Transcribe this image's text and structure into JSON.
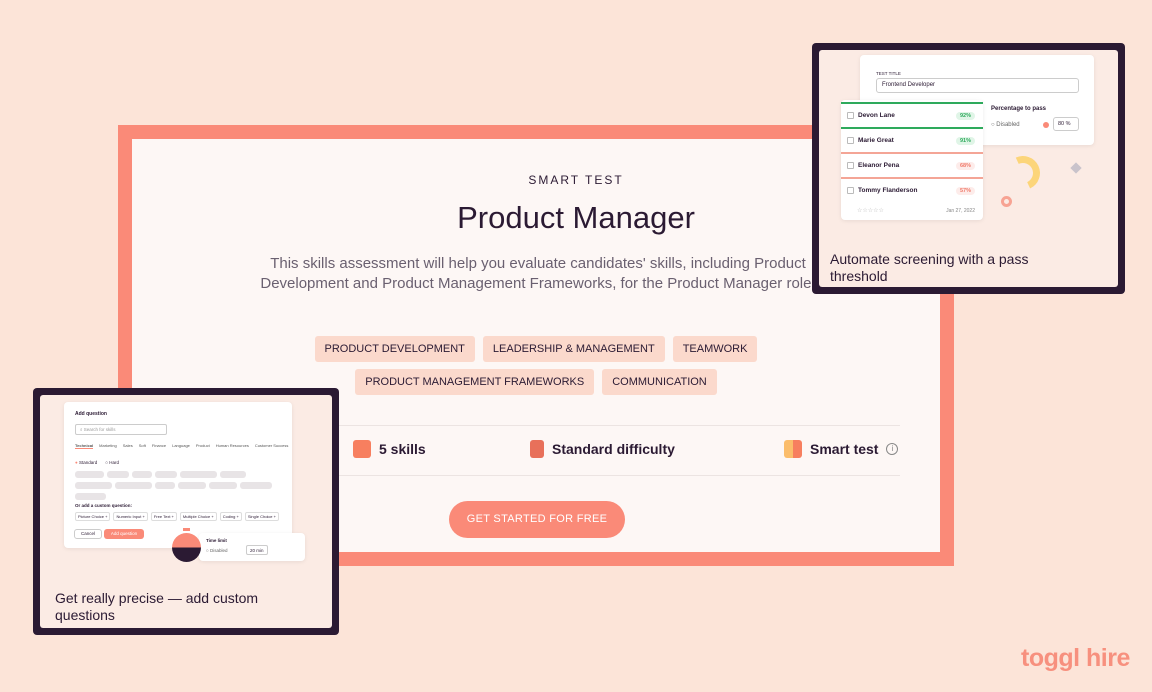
{
  "main": {
    "eyebrow": "SMART TEST",
    "title": "Product Manager",
    "description": "This skills assessment will help you evaluate candidates' skills, including Product Development and Product Management Frameworks, for the Product Manager role.",
    "tags": [
      "PRODUCT DEVELOPMENT",
      "LEADERSHIP & MANAGEMENT",
      "TEAMWORK",
      "PRODUCT MANAGEMENT FRAMEWORKS",
      "COMMUNICATION"
    ],
    "stats": {
      "skills": "5 skills",
      "difficulty": "Standard difficulty",
      "type": "Smart test"
    },
    "cta": "GET STARTED FOR FREE"
  },
  "right_card": {
    "test_title_label": "TEST TITLE",
    "test_title_value": "Frontend Developer",
    "pass_label": "Percentage to pass",
    "disabled": "Disabled",
    "pass_value": "80",
    "pass_unit": "%",
    "candidates": [
      {
        "name": "Devon Lane",
        "score": "92%"
      },
      {
        "name": "Marie Great",
        "score": "91%"
      },
      {
        "name": "Eleanor Pena",
        "score": "68%"
      },
      {
        "name": "Tommy Flanderson",
        "score": "57%"
      }
    ],
    "date": "Jan 27, 2022",
    "caption": "Automate screening with a pass threshold"
  },
  "left_card": {
    "dialog_title": "Add question",
    "search_placeholder": "Search for skills",
    "categories": [
      "Technical",
      "Marketing",
      "Sales",
      "Soft",
      "Finance",
      "Language",
      "Product",
      "Human Resources",
      "Customer Success"
    ],
    "difficulty": [
      "Standard",
      "Hard"
    ],
    "custom_label": "Or add a custom question:",
    "custom_types": [
      "Picture Choice",
      "Numeric Input",
      "Free Text",
      "Multiple Choice",
      "Coding",
      "Single Choice"
    ],
    "cancel": "Cancel",
    "add": "Add question",
    "time_label": "Time limit",
    "time_disabled": "Disabled",
    "time_value": "20",
    "time_unit": "min",
    "caption": "Get really precise — add custom questions"
  },
  "logo": "toggl hire",
  "colors": {
    "accent": "#fa8a78",
    "dark": "#2b1a33",
    "background": "#fce4d8",
    "green": "#2eaa5c"
  }
}
